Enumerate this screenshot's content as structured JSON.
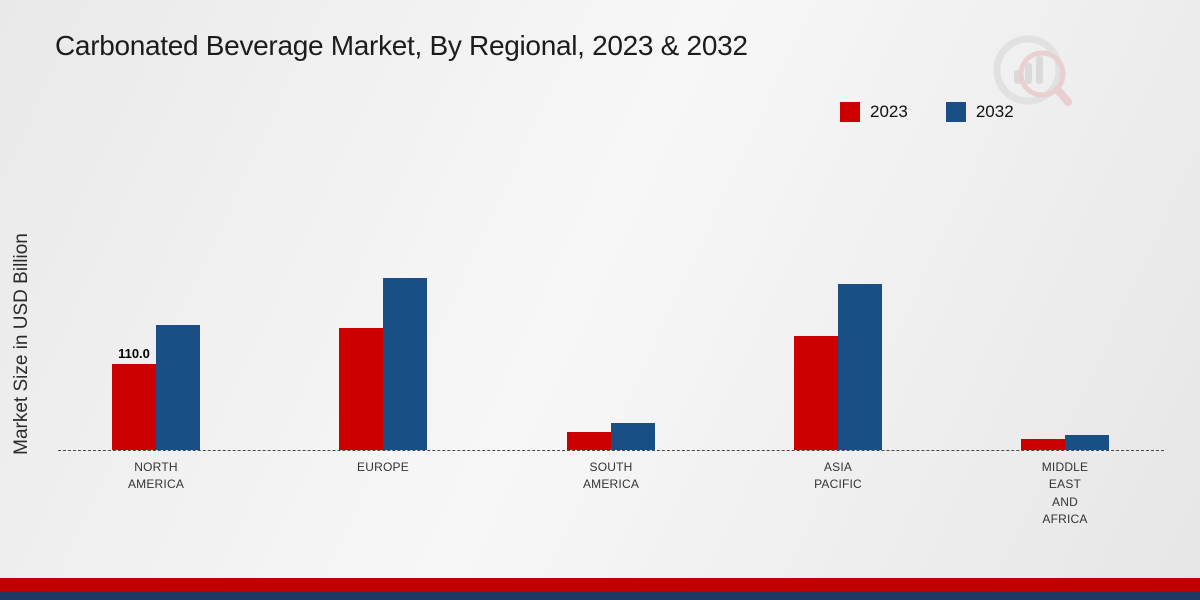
{
  "page": {
    "title": "Carbonated Beverage Market, By Regional, 2023 & 2032"
  },
  "y_axis": {
    "label": "Market Size in USD Billion"
  },
  "legend": {
    "position": "top-right",
    "items": [
      {
        "label": "2023",
        "color": "#cc0000"
      },
      {
        "label": "2032",
        "color": "#1a4f86"
      }
    ]
  },
  "chart_data": {
    "type": "bar",
    "title": "Carbonated Beverage Market, By Regional, 2023 & 2032",
    "ylabel": "Market Size in USD Billion",
    "xlabel": "",
    "categories": [
      "NORTH AMERICA",
      "EUROPE",
      "SOUTH AMERICA",
      "ASIA PACIFIC",
      "MIDDLE EAST AND AFRICA"
    ],
    "series": [
      {
        "name": "2023",
        "color": "#cc0000",
        "values": [
          110.0,
          156,
          23,
          146,
          14
        ]
      },
      {
        "name": "2032",
        "color": "#1a4f86",
        "values": [
          160,
          220,
          35,
          212,
          19
        ]
      }
    ],
    "ylim": [
      0,
      240
    ],
    "grid": false,
    "baseline_style": "dashed",
    "legend_position": "top-right",
    "annotations": [
      {
        "series": "2023",
        "category_index": 0,
        "text": "110.0"
      }
    ]
  },
  "branding": {
    "logo": "magnifier-bar-chart-watermark",
    "footer_stripe_red": "#c00000",
    "footer_stripe_navy": "#1f3864"
  }
}
